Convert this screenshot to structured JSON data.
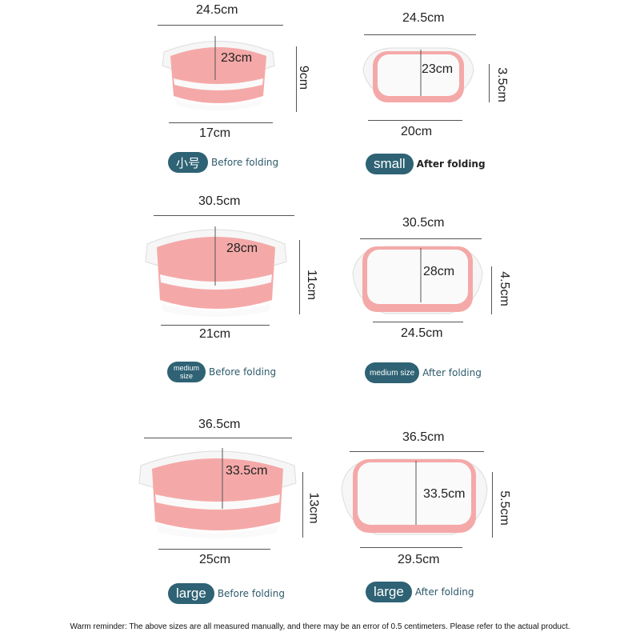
{
  "colors": {
    "pink": "#f4a9a8",
    "pink_dark": "#e9888a",
    "white": "#fafafa",
    "badge": "#2e6274"
  },
  "items": [
    {
      "top_len": "24.5cm",
      "depth": "23cm",
      "height": "9cm",
      "bottom_len": "17cm",
      "badge": "小号",
      "note": "Before folding"
    },
    {
      "top_len": "24.5cm",
      "depth": "23cm",
      "height": "3.5cm",
      "bottom_len": "20cm",
      "badge": "small",
      "note": "After folding"
    },
    {
      "top_len": "30.5cm",
      "depth": "28cm",
      "height": "11cm",
      "bottom_len": "21cm",
      "badge_lines": [
        "medium",
        "size"
      ],
      "note": "Before folding"
    },
    {
      "top_len": "30.5cm",
      "depth": "28cm",
      "height": "4.5cm",
      "bottom_len": "24.5cm",
      "badge": "medium size",
      "note": "After folding"
    },
    {
      "top_len": "36.5cm",
      "depth": "33.5cm",
      "height": "13cm",
      "bottom_len": "25cm",
      "badge": "large",
      "note": "Before folding"
    },
    {
      "top_len": "36.5cm",
      "depth": "33.5cm",
      "height": "5.5cm",
      "bottom_len": "29.5cm",
      "badge": "large",
      "note": "After folding"
    }
  ],
  "footer": "Warm reminder: The above sizes are all measured manually, and there may be an error of 0.5 centimeters. Please refer to the actual product."
}
